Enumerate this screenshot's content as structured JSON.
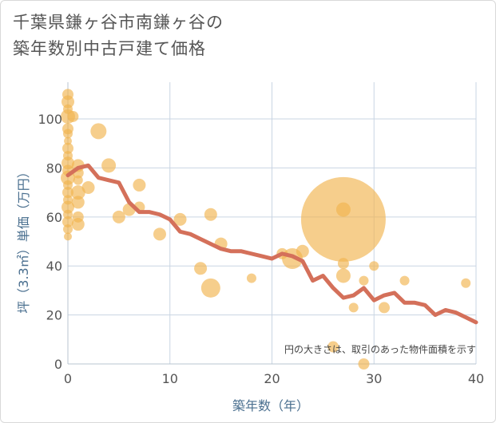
{
  "title_line1": "千葉県鎌ヶ谷市南鎌ヶ谷の",
  "title_line2": "築年数別中古戸建て価格",
  "chart_data": {
    "type": "scatter",
    "xlabel": "築年数（年）",
    "ylabel": "坪（3.3㎡）単価（万円）",
    "xlim": [
      0,
      40
    ],
    "ylim": [
      0,
      115
    ],
    "xticks": [
      0,
      10,
      20,
      30,
      40
    ],
    "yticks": [
      0,
      20,
      40,
      60,
      80,
      100
    ],
    "grid": true,
    "note": "円の大きさは、取引のあった物件面積を示す",
    "colors": {
      "bubble": "#f1b34f",
      "line": "#d4705a",
      "grid": "#c9d5e3"
    },
    "bubbles": [
      {
        "x": 0,
        "y": 110,
        "size": 7
      },
      {
        "x": 0,
        "y": 107,
        "size": 8
      },
      {
        "x": 0,
        "y": 104,
        "size": 6
      },
      {
        "x": 0,
        "y": 101,
        "size": 9
      },
      {
        "x": 0,
        "y": 96,
        "size": 7
      },
      {
        "x": 0,
        "y": 94,
        "size": 6
      },
      {
        "x": 0,
        "y": 91,
        "size": 5
      },
      {
        "x": 0,
        "y": 88,
        "size": 7
      },
      {
        "x": 0,
        "y": 85,
        "size": 6
      },
      {
        "x": 0,
        "y": 82,
        "size": 8
      },
      {
        "x": 0,
        "y": 79,
        "size": 7
      },
      {
        "x": 0,
        "y": 76,
        "size": 9
      },
      {
        "x": 0,
        "y": 73,
        "size": 6
      },
      {
        "x": 0,
        "y": 70,
        "size": 7
      },
      {
        "x": 0,
        "y": 67,
        "size": 6
      },
      {
        "x": 0,
        "y": 64,
        "size": 8
      },
      {
        "x": 0,
        "y": 61,
        "size": 6
      },
      {
        "x": 0,
        "y": 58,
        "size": 7
      },
      {
        "x": 0,
        "y": 55,
        "size": 6
      },
      {
        "x": 0,
        "y": 52,
        "size": 5
      },
      {
        "x": 0.5,
        "y": 101,
        "size": 7
      },
      {
        "x": 1,
        "y": 81,
        "size": 8
      },
      {
        "x": 1,
        "y": 78,
        "size": 7
      },
      {
        "x": 1,
        "y": 75,
        "size": 6
      },
      {
        "x": 1,
        "y": 70,
        "size": 9
      },
      {
        "x": 1,
        "y": 66,
        "size": 8
      },
      {
        "x": 1,
        "y": 60,
        "size": 7
      },
      {
        "x": 1,
        "y": 57,
        "size": 8
      },
      {
        "x": 2,
        "y": 72,
        "size": 8
      },
      {
        "x": 3,
        "y": 95,
        "size": 10
      },
      {
        "x": 4,
        "y": 81,
        "size": 9
      },
      {
        "x": 5,
        "y": 60,
        "size": 8
      },
      {
        "x": 6,
        "y": 63,
        "size": 8
      },
      {
        "x": 7,
        "y": 73,
        "size": 8
      },
      {
        "x": 7,
        "y": 64,
        "size": 7
      },
      {
        "x": 9,
        "y": 53,
        "size": 8
      },
      {
        "x": 11,
        "y": 59,
        "size": 8
      },
      {
        "x": 13,
        "y": 39,
        "size": 8
      },
      {
        "x": 14,
        "y": 61,
        "size": 8
      },
      {
        "x": 14,
        "y": 31,
        "size": 12
      },
      {
        "x": 15,
        "y": 49,
        "size": 8
      },
      {
        "x": 18,
        "y": 35,
        "size": 6
      },
      {
        "x": 21,
        "y": 45,
        "size": 7
      },
      {
        "x": 22,
        "y": 43,
        "size": 13
      },
      {
        "x": 23,
        "y": 46,
        "size": 8
      },
      {
        "x": 26,
        "y": 7,
        "size": 7
      },
      {
        "x": 27,
        "y": 59,
        "size": 53
      },
      {
        "x": 27,
        "y": 63,
        "size": 9
      },
      {
        "x": 27,
        "y": 41,
        "size": 7
      },
      {
        "x": 27,
        "y": 36,
        "size": 9
      },
      {
        "x": 28,
        "y": 23,
        "size": 6
      },
      {
        "x": 29,
        "y": 34,
        "size": 6
      },
      {
        "x": 29,
        "y": 0,
        "size": 7
      },
      {
        "x": 30,
        "y": 40,
        "size": 6
      },
      {
        "x": 31,
        "y": 23,
        "size": 7
      },
      {
        "x": 33,
        "y": 34,
        "size": 6
      },
      {
        "x": 39,
        "y": 33,
        "size": 6
      }
    ],
    "trend": {
      "x": [
        0,
        1,
        2,
        3,
        4,
        5,
        6,
        7,
        8,
        9,
        10,
        11,
        12,
        13,
        14,
        15,
        16,
        17,
        18,
        19,
        20,
        21,
        22,
        23,
        24,
        25,
        26,
        27,
        28,
        29,
        30,
        31,
        32,
        33,
        34,
        35,
        36,
        37,
        38,
        39,
        40
      ],
      "y": [
        77,
        80,
        81,
        76,
        75,
        74,
        66,
        62,
        62,
        61,
        59,
        54,
        53,
        51,
        49,
        47,
        46,
        46,
        45,
        44,
        43,
        45,
        44,
        42,
        34,
        36,
        31,
        27,
        28,
        31,
        26,
        28,
        29,
        25,
        25,
        24,
        20,
        22,
        21,
        19,
        17
      ]
    }
  }
}
